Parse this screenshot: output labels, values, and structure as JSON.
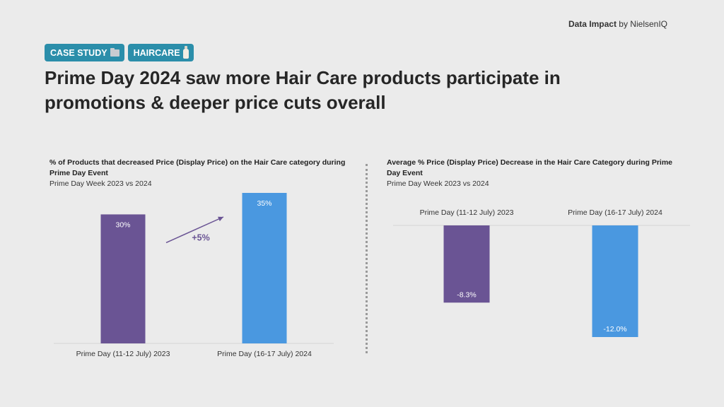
{
  "brand": {
    "bold": "Data Impact",
    "rest": " by NielsenIQ"
  },
  "tags": [
    {
      "label": "CASE STUDY",
      "icon": "folder-icon"
    },
    {
      "label": "HAIRCARE",
      "icon": "bottle-icon"
    }
  ],
  "headline": "Prime Day 2024 saw more Hair Care products participate in promotions & deeper price cuts overall",
  "colors": {
    "purple": "#6a5494",
    "blue": "#4a98e0",
    "tag": "#2b8eaa"
  },
  "chart_data": [
    {
      "type": "bar",
      "title": "% of Products that decreased Price (Display Price) on the Hair Care category during Prime Day Event",
      "subtitle": "Prime Day Week 2023 vs 2024",
      "categories": [
        "Prime Day (11-12 July) 2023",
        "Prime Day (16-17 July) 2024"
      ],
      "values": [
        30,
        35
      ],
      "labels": [
        "30%",
        "35%"
      ],
      "ylim": [
        0,
        35
      ],
      "annotation": "+5%",
      "grid": false
    },
    {
      "type": "bar",
      "title": "Average % Price (Display Price) Decrease in the Hair Care Category during Prime Day Event",
      "subtitle": "Prime Day Week 2023 vs 2024",
      "categories": [
        "Prime Day (11-12 July) 2023",
        "Prime Day (16-17 July) 2024"
      ],
      "values": [
        -8.3,
        -12.0
      ],
      "labels": [
        "-8.3%",
        "-12.0%"
      ],
      "ylim": [
        -12.0,
        0
      ],
      "grid": false
    }
  ]
}
